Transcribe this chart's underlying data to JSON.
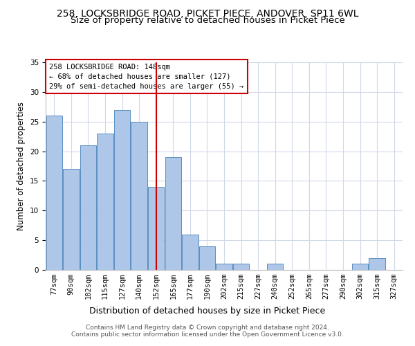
{
  "title1": "258, LOCKSBRIDGE ROAD, PICKET PIECE, ANDOVER, SP11 6WL",
  "title2": "Size of property relative to detached houses in Picket Piece",
  "xlabel": "Distribution of detached houses by size in Picket Piece",
  "ylabel": "Number of detached properties",
  "categories": [
    "77sqm",
    "90sqm",
    "102sqm",
    "115sqm",
    "127sqm",
    "140sqm",
    "152sqm",
    "165sqm",
    "177sqm",
    "190sqm",
    "202sqm",
    "215sqm",
    "227sqm",
    "240sqm",
    "252sqm",
    "265sqm",
    "277sqm",
    "290sqm",
    "302sqm",
    "315sqm",
    "327sqm"
  ],
  "values": [
    26,
    17,
    21,
    23,
    27,
    25,
    14,
    19,
    6,
    4,
    1,
    1,
    0,
    1,
    0,
    0,
    0,
    0,
    1,
    2,
    0
  ],
  "bar_color": "#aec6e8",
  "bar_edgecolor": "#5a8fc0",
  "vline_x": 6,
  "vline_color": "#cc0000",
  "annotation_line1": "258 LOCKSBRIDGE ROAD: 148sqm",
  "annotation_line2": "← 68% of detached houses are smaller (127)",
  "annotation_line3": "29% of semi-detached houses are larger (55) →",
  "annotation_box_color": "#ffffff",
  "annotation_box_edgecolor": "#cc0000",
  "ylim": [
    0,
    35
  ],
  "yticks": [
    0,
    5,
    10,
    15,
    20,
    25,
    30,
    35
  ],
  "background_color": "#ffffff",
  "grid_color": "#d0d8e8",
  "footer1": "Contains HM Land Registry data © Crown copyright and database right 2024.",
  "footer2": "Contains public sector information licensed under the Open Government Licence v3.0.",
  "title1_fontsize": 10,
  "title2_fontsize": 9.5,
  "xlabel_fontsize": 9,
  "ylabel_fontsize": 8.5,
  "tick_fontsize": 7.5,
  "annotation_fontsize": 7.5,
  "footer_fontsize": 6.5
}
